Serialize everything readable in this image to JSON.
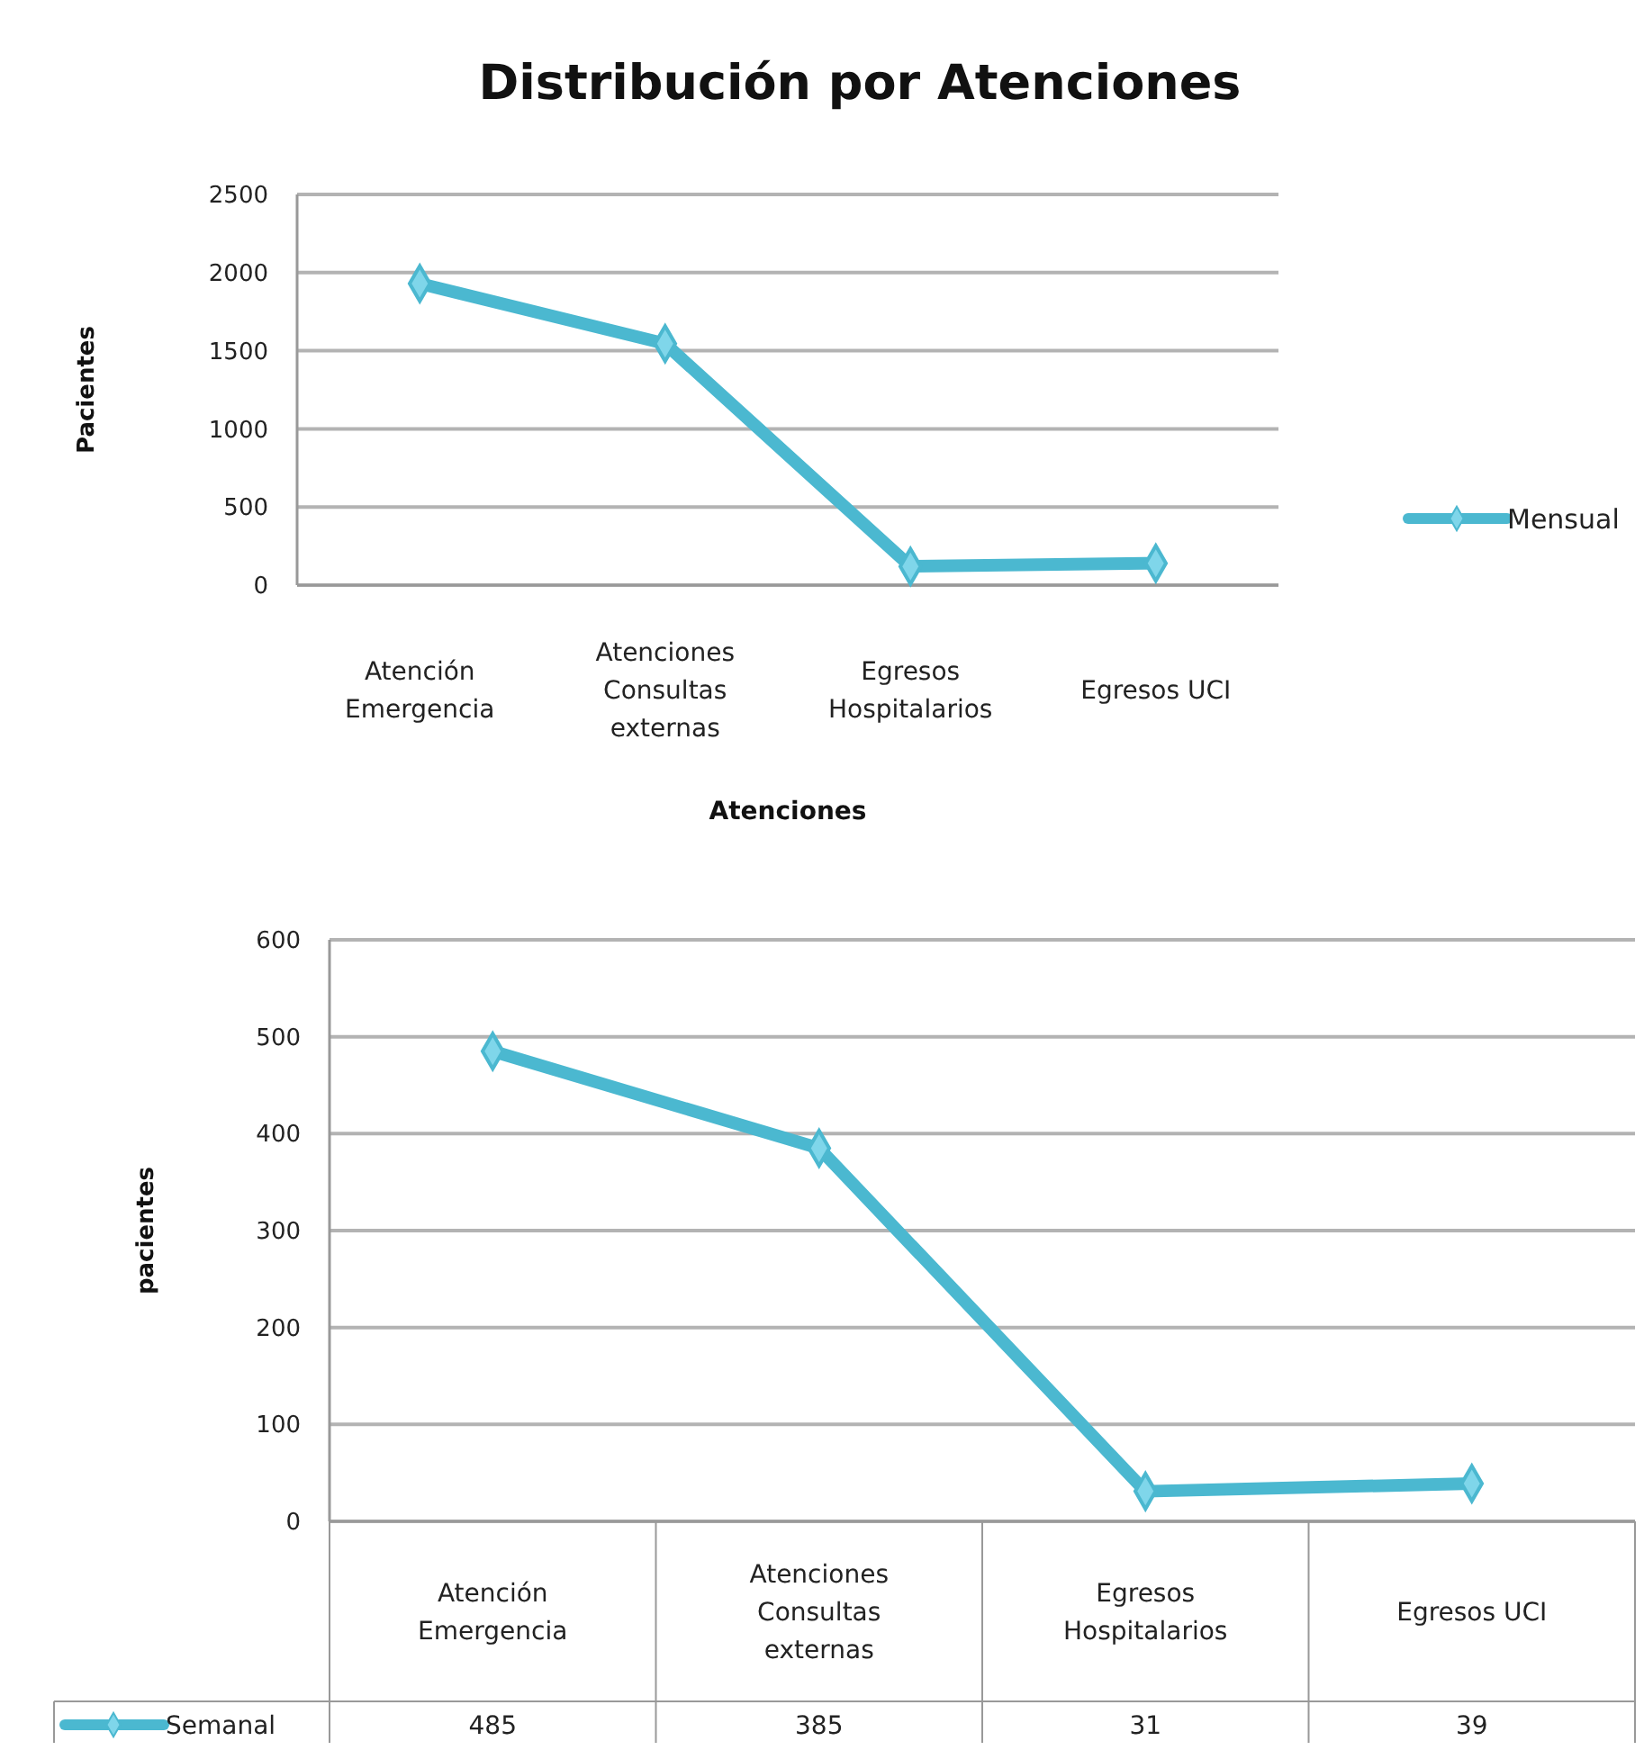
{
  "chart_data": [
    {
      "type": "line",
      "title": "Distribución por Atenciones",
      "xlabel": "Atenciones",
      "ylabel": "Pacientes",
      "categories": [
        "Atención Emergencia",
        "Atenciones Consultas externas",
        "Egresos Hospitalarios",
        "Egresos UCI"
      ],
      "series": [
        {
          "name": "Mensual",
          "color": "#4bb8d0",
          "values": [
            1930,
            1545,
            120,
            140
          ]
        }
      ],
      "ylim": [
        0,
        2500
      ],
      "yticks": [
        0,
        500,
        1000,
        1500,
        2000,
        2500
      ],
      "grid": "y",
      "legend": "right",
      "marker": "diamond",
      "line_style": "solid"
    },
    {
      "type": "line",
      "ylabel": "pacientes",
      "categories": [
        "Atención Emergencia",
        "Atenciones Consultas externas",
        "Egresos Hospitalarios",
        "Egresos UCI"
      ],
      "series": [
        {
          "name": "Semanal",
          "color": "#4bb8d0",
          "values": [
            485,
            385,
            31,
            39
          ]
        }
      ],
      "ylim": [
        0,
        600
      ],
      "yticks": [
        0,
        100,
        200,
        300,
        400,
        500,
        600
      ],
      "grid": "y",
      "legend": "bottom",
      "marker": "diamond",
      "line_style": "solid",
      "data_labels": true
    }
  ]
}
